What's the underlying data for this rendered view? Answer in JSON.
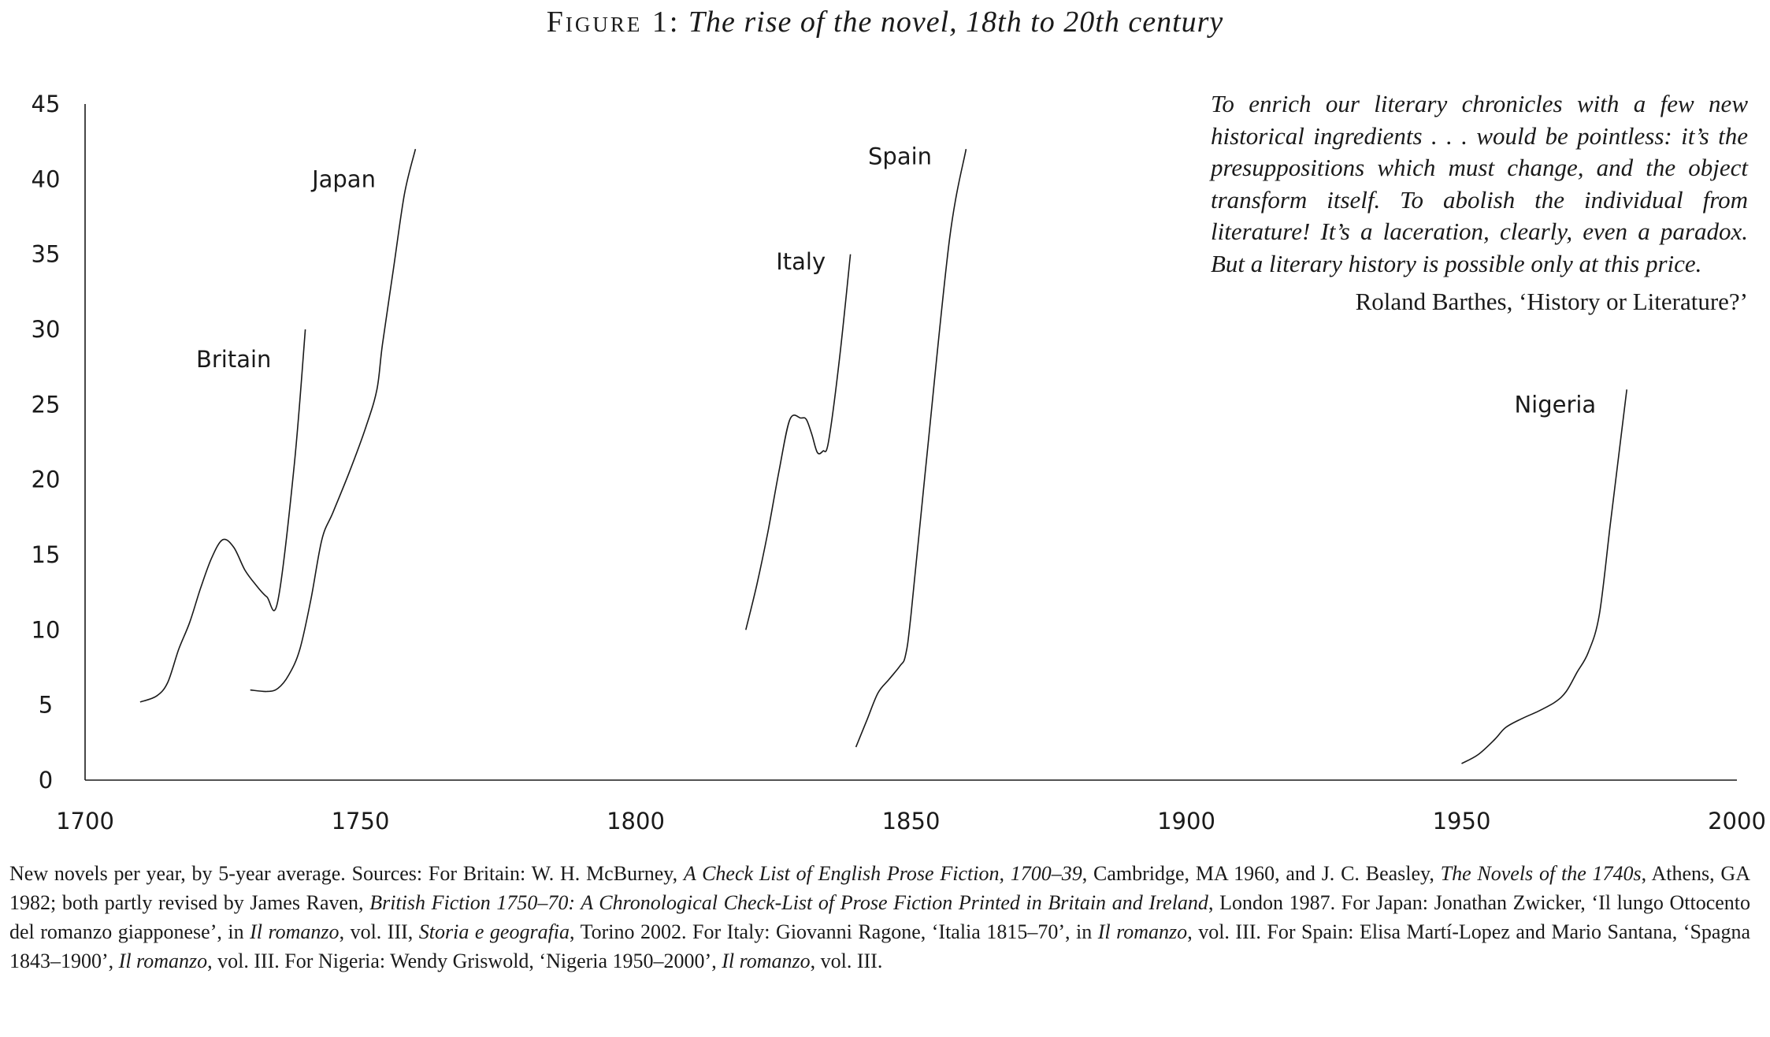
{
  "figure": {
    "label": "Figure 1:",
    "title": "The rise of the novel, 18th to 20th century"
  },
  "chart_data": {
    "type": "line",
    "xlim": [
      1700,
      2000
    ],
    "ylim": [
      0,
      45
    ],
    "x_ticks": [
      1700,
      1750,
      1800,
      1850,
      1900,
      1950,
      2000
    ],
    "y_ticks": [
      0,
      5,
      10,
      15,
      20,
      25,
      30,
      35,
      40,
      45
    ],
    "grid": false,
    "series": [
      {
        "name": "Britain",
        "label_at": [
          1727,
          28
        ],
        "points": [
          [
            1710,
            5.2
          ],
          [
            1713,
            5.6
          ],
          [
            1715,
            6.5
          ],
          [
            1717,
            8.7
          ],
          [
            1719,
            10.5
          ],
          [
            1721,
            12.8
          ],
          [
            1723,
            14.8
          ],
          [
            1725,
            16
          ],
          [
            1727,
            15.5
          ],
          [
            1729,
            14
          ],
          [
            1731,
            13
          ],
          [
            1733,
            12.2
          ],
          [
            1735,
            11.9
          ],
          [
            1738,
            21
          ],
          [
            1740,
            30
          ]
        ]
      },
      {
        "name": "Japan",
        "label_at": [
          1747,
          40
        ],
        "points": [
          [
            1730,
            6
          ],
          [
            1733,
            5.9
          ],
          [
            1735,
            6.1
          ],
          [
            1737,
            7
          ],
          [
            1739,
            8.7
          ],
          [
            1741,
            12
          ],
          [
            1743,
            16
          ],
          [
            1745,
            17.8
          ],
          [
            1748,
            20.5
          ],
          [
            1751,
            23.5
          ],
          [
            1753,
            26
          ],
          [
            1754,
            29
          ],
          [
            1756,
            34
          ],
          [
            1758,
            39
          ],
          [
            1760,
            42
          ]
        ]
      },
      {
        "name": "Italy",
        "label_at": [
          1830,
          34.5
        ],
        "points": [
          [
            1820,
            10
          ],
          [
            1822,
            13
          ],
          [
            1824,
            16.5
          ],
          [
            1826,
            20.5
          ],
          [
            1828,
            24
          ],
          [
            1830,
            24.1
          ],
          [
            1831,
            24
          ],
          [
            1832,
            23
          ],
          [
            1833,
            21.8
          ],
          [
            1834,
            21.9
          ],
          [
            1835,
            22.5
          ],
          [
            1837,
            28
          ],
          [
            1839,
            35
          ]
        ]
      },
      {
        "name": "Spain",
        "label_at": [
          1848,
          41.5
        ],
        "points": [
          [
            1840,
            2.2
          ],
          [
            1842,
            4
          ],
          [
            1844,
            5.8
          ],
          [
            1846,
            6.7
          ],
          [
            1848,
            7.6
          ],
          [
            1849,
            8.3
          ],
          [
            1850,
            11
          ],
          [
            1853,
            22
          ],
          [
            1857,
            36
          ],
          [
            1860,
            42
          ]
        ]
      },
      {
        "name": "Nigeria",
        "label_at": [
          1967,
          25
        ],
        "points": [
          [
            1950,
            1.1
          ],
          [
            1953,
            1.7
          ],
          [
            1956,
            2.7
          ],
          [
            1958,
            3.5
          ],
          [
            1961,
            4.1
          ],
          [
            1964,
            4.6
          ],
          [
            1967,
            5.2
          ],
          [
            1969,
            5.9
          ],
          [
            1971,
            7.2
          ],
          [
            1973,
            8.5
          ],
          [
            1975,
            11
          ],
          [
            1977,
            17
          ],
          [
            1979,
            23
          ],
          [
            1980,
            26
          ]
        ]
      }
    ]
  },
  "epigraph": {
    "text": "To enrich our literary chronicles with a few new historical ingredients . . . would be pointless: it’s the presuppositions which must change, and the object transform itself. To abolish the individual from literature! It’s a laceration, clearly, even a paradox. But a literary history is possible only at this price.",
    "attribution": "Roland Barthes, ‘History or Literature?’"
  },
  "caption": {
    "p1": "New novels per year, by 5-year average. Sources: For Britain: W. H. McBurney, ",
    "i1": "A Check List of English Prose Fiction, 1700–39",
    "p2": ", Cambridge, MA 1960, and J. C. Beasley, ",
    "i2": "The Novels of the 1740s",
    "p3": ", Athens, GA 1982; both partly revised by James Raven, ",
    "i3": "British Fiction 1750–70: A Chronological Check-List of Prose Fiction Printed in Britain and Ireland",
    "p4": ", London 1987. For Japan: Jonathan Zwicker, ‘Il lungo Ottocento del romanzo giapponese’, in ",
    "i4": "Il romanzo",
    "p5": ", vol. III, ",
    "i5": "Storia e geografia",
    "p6": ", Torino 2002. For Italy: Giovanni Ragone, ‘Italia 1815–70’, in ",
    "i6": "Il romanzo",
    "p7": ", vol. III. For Spain: Elisa Martí-Lopez and Mario Santana, ‘Spagna 1843–1900’, ",
    "i7": "Il romanzo",
    "p8": ", vol. III. For Nigeria: Wendy Griswold, ‘Nigeria 1950–2000’, ",
    "i8": "Il romanzo",
    "p9": ", vol. III."
  }
}
